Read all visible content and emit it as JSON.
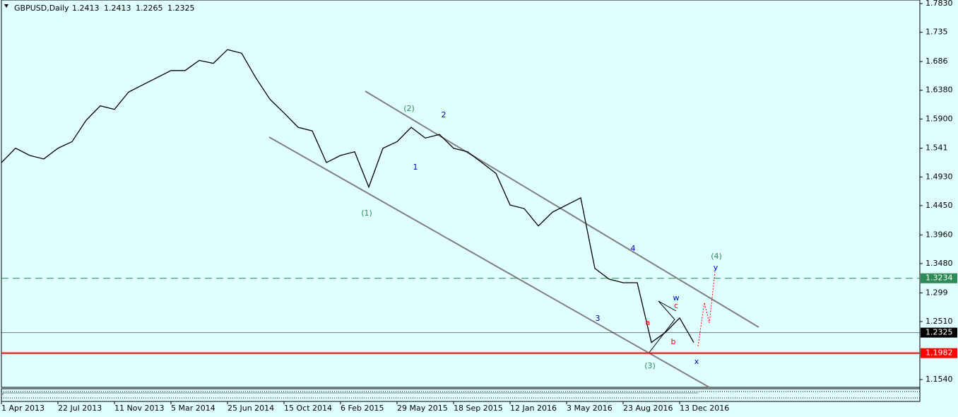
{
  "chart_data": {
    "type": "line",
    "symbol": "GBPUSD,Daily",
    "ohlc": [
      1.2413,
      1.2413,
      1.2265,
      1.2325
    ],
    "categories": [
      "1 Apr 2013",
      null,
      null,
      null,
      "22 Jul 2013",
      null,
      null,
      null,
      "11 Nov 2013",
      null,
      null,
      null,
      "5 Mar 2014",
      null,
      null,
      null,
      "25 Jun 2014",
      null,
      null,
      null,
      "15 Oct 2014",
      null,
      null,
      null,
      "6 Feb 2015",
      null,
      null,
      null,
      "29 May 2015",
      null,
      null,
      null,
      "18 Sep 2015",
      null,
      null,
      null,
      "12 Jan 2016",
      null,
      null,
      null,
      "3 May 2016",
      null,
      null,
      null,
      "23 Aug 2016",
      null,
      null,
      null,
      "13 Dec 2016",
      null
    ],
    "series": [
      {
        "name": "GBPUSD",
        "color": "#000000",
        "values": [
          1.517,
          1.541,
          1.529,
          1.523,
          1.541,
          1.552,
          1.588,
          1.612,
          1.606,
          1.635,
          1.647,
          1.659,
          1.671,
          1.671,
          1.688,
          1.683,
          1.706,
          1.7,
          1.659,
          1.623,
          1.6,
          1.576,
          1.57,
          1.517,
          1.529,
          1.535,
          1.476,
          1.541,
          1.552,
          1.576,
          1.558,
          1.564,
          1.541,
          1.535,
          1.517,
          1.499,
          1.446,
          1.44,
          1.411,
          1.434,
          1.446,
          1.458,
          1.34,
          1.322,
          1.316,
          1.316,
          1.216,
          1.233,
          1.257,
          1.216
        ]
      }
    ],
    "ylim": [
      1.141,
      1.789
    ],
    "yticks": [
      {
        "value": 1.783,
        "label": "1.7830"
      },
      1.735,
      1.686,
      {
        "value": 1.638,
        "label": "1.6380"
      },
      {
        "value": 1.59,
        "label": "1.5900"
      },
      1.541,
      {
        "value": 1.493,
        "label": "1.4930"
      },
      {
        "value": 1.445,
        "label": "1.4450"
      },
      {
        "value": 1.396,
        "label": "1.3960"
      },
      {
        "value": 1.348,
        "label": "1.3480"
      },
      1.299,
      {
        "value": 1.251,
        "label": "1.2510"
      },
      {
        "value": 1.154,
        "label": "1.1540"
      }
    ],
    "hlines": [
      {
        "value": 1.3234,
        "color": "#2e8b57",
        "dash": true
      },
      {
        "value": 1.2325,
        "color": "#000000",
        "dash": false
      },
      {
        "value": 1.1982,
        "color": "#ff0000",
        "dash": false
      }
    ],
    "annotations": [
      {
        "text": "(1)",
        "color": "#2e8b57"
      },
      {
        "text": "(2)",
        "color": "#2e8b57"
      },
      {
        "text": "1",
        "color": "#0000cd"
      },
      {
        "text": "2",
        "color": "#0000cd"
      },
      {
        "text": "3",
        "color": "#0000cd"
      },
      {
        "text": "4",
        "color": "#0000cd"
      },
      {
        "text": "(3)",
        "color": "#2e8b57"
      },
      {
        "text": "(4)",
        "color": "#2e8b57"
      },
      {
        "text": "a",
        "color": "#ff0000"
      },
      {
        "text": "b",
        "color": "#ff0000"
      },
      {
        "text": "c",
        "color": "#ff0000"
      },
      {
        "text": "w",
        "color": "#0000cd"
      },
      {
        "text": "x",
        "color": "#0000cd"
      },
      {
        "text": "y",
        "color": "#0000cd"
      }
    ]
  }
}
